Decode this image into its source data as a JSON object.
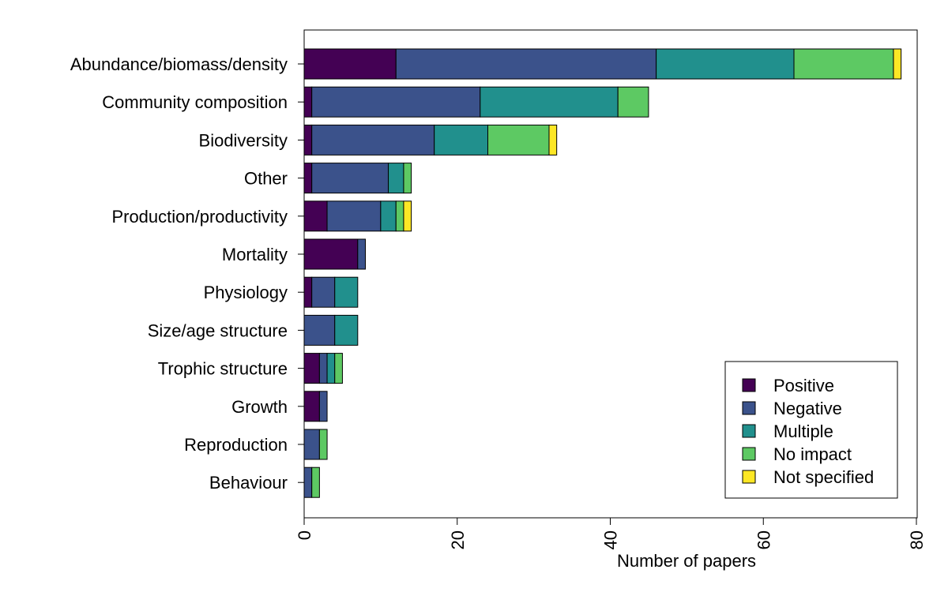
{
  "chart_data": {
    "type": "bar",
    "orientation": "horizontal",
    "stacked": true,
    "title": "",
    "xlabel": "Number of papers",
    "ylabel": "",
    "xlim": [
      0,
      80
    ],
    "x_ticks": [
      0,
      20,
      40,
      60,
      80
    ],
    "grid": false,
    "legend_position": "bottom-right",
    "categories": [
      "Abundance/biomass/density",
      "Community composition",
      "Biodiversity",
      "Other",
      "Production/productivity",
      "Mortality",
      "Physiology",
      "Size/age structure",
      "Trophic structure",
      "Growth",
      "Reproduction",
      "Behaviour"
    ],
    "series": [
      {
        "name": "Positive",
        "color": "#440154",
        "values": [
          12,
          1,
          1,
          1,
          3,
          7,
          1,
          0,
          2,
          2,
          0,
          0
        ]
      },
      {
        "name": "Negative",
        "color": "#3b528b",
        "values": [
          34,
          22,
          16,
          10,
          7,
          1,
          3,
          4,
          1,
          1,
          2,
          1
        ]
      },
      {
        "name": "Multiple",
        "color": "#21908d",
        "values": [
          18,
          18,
          7,
          2,
          2,
          0,
          3,
          3,
          1,
          0,
          0,
          0
        ]
      },
      {
        "name": "No impact",
        "color": "#5dc963",
        "values": [
          13,
          4,
          8,
          1,
          1,
          0,
          0,
          0,
          1,
          0,
          1,
          1
        ]
      },
      {
        "name": "Not specified",
        "color": "#fde725",
        "values": [
          1,
          0,
          1,
          0,
          1,
          0,
          0,
          0,
          0,
          0,
          0,
          0
        ]
      }
    ]
  }
}
